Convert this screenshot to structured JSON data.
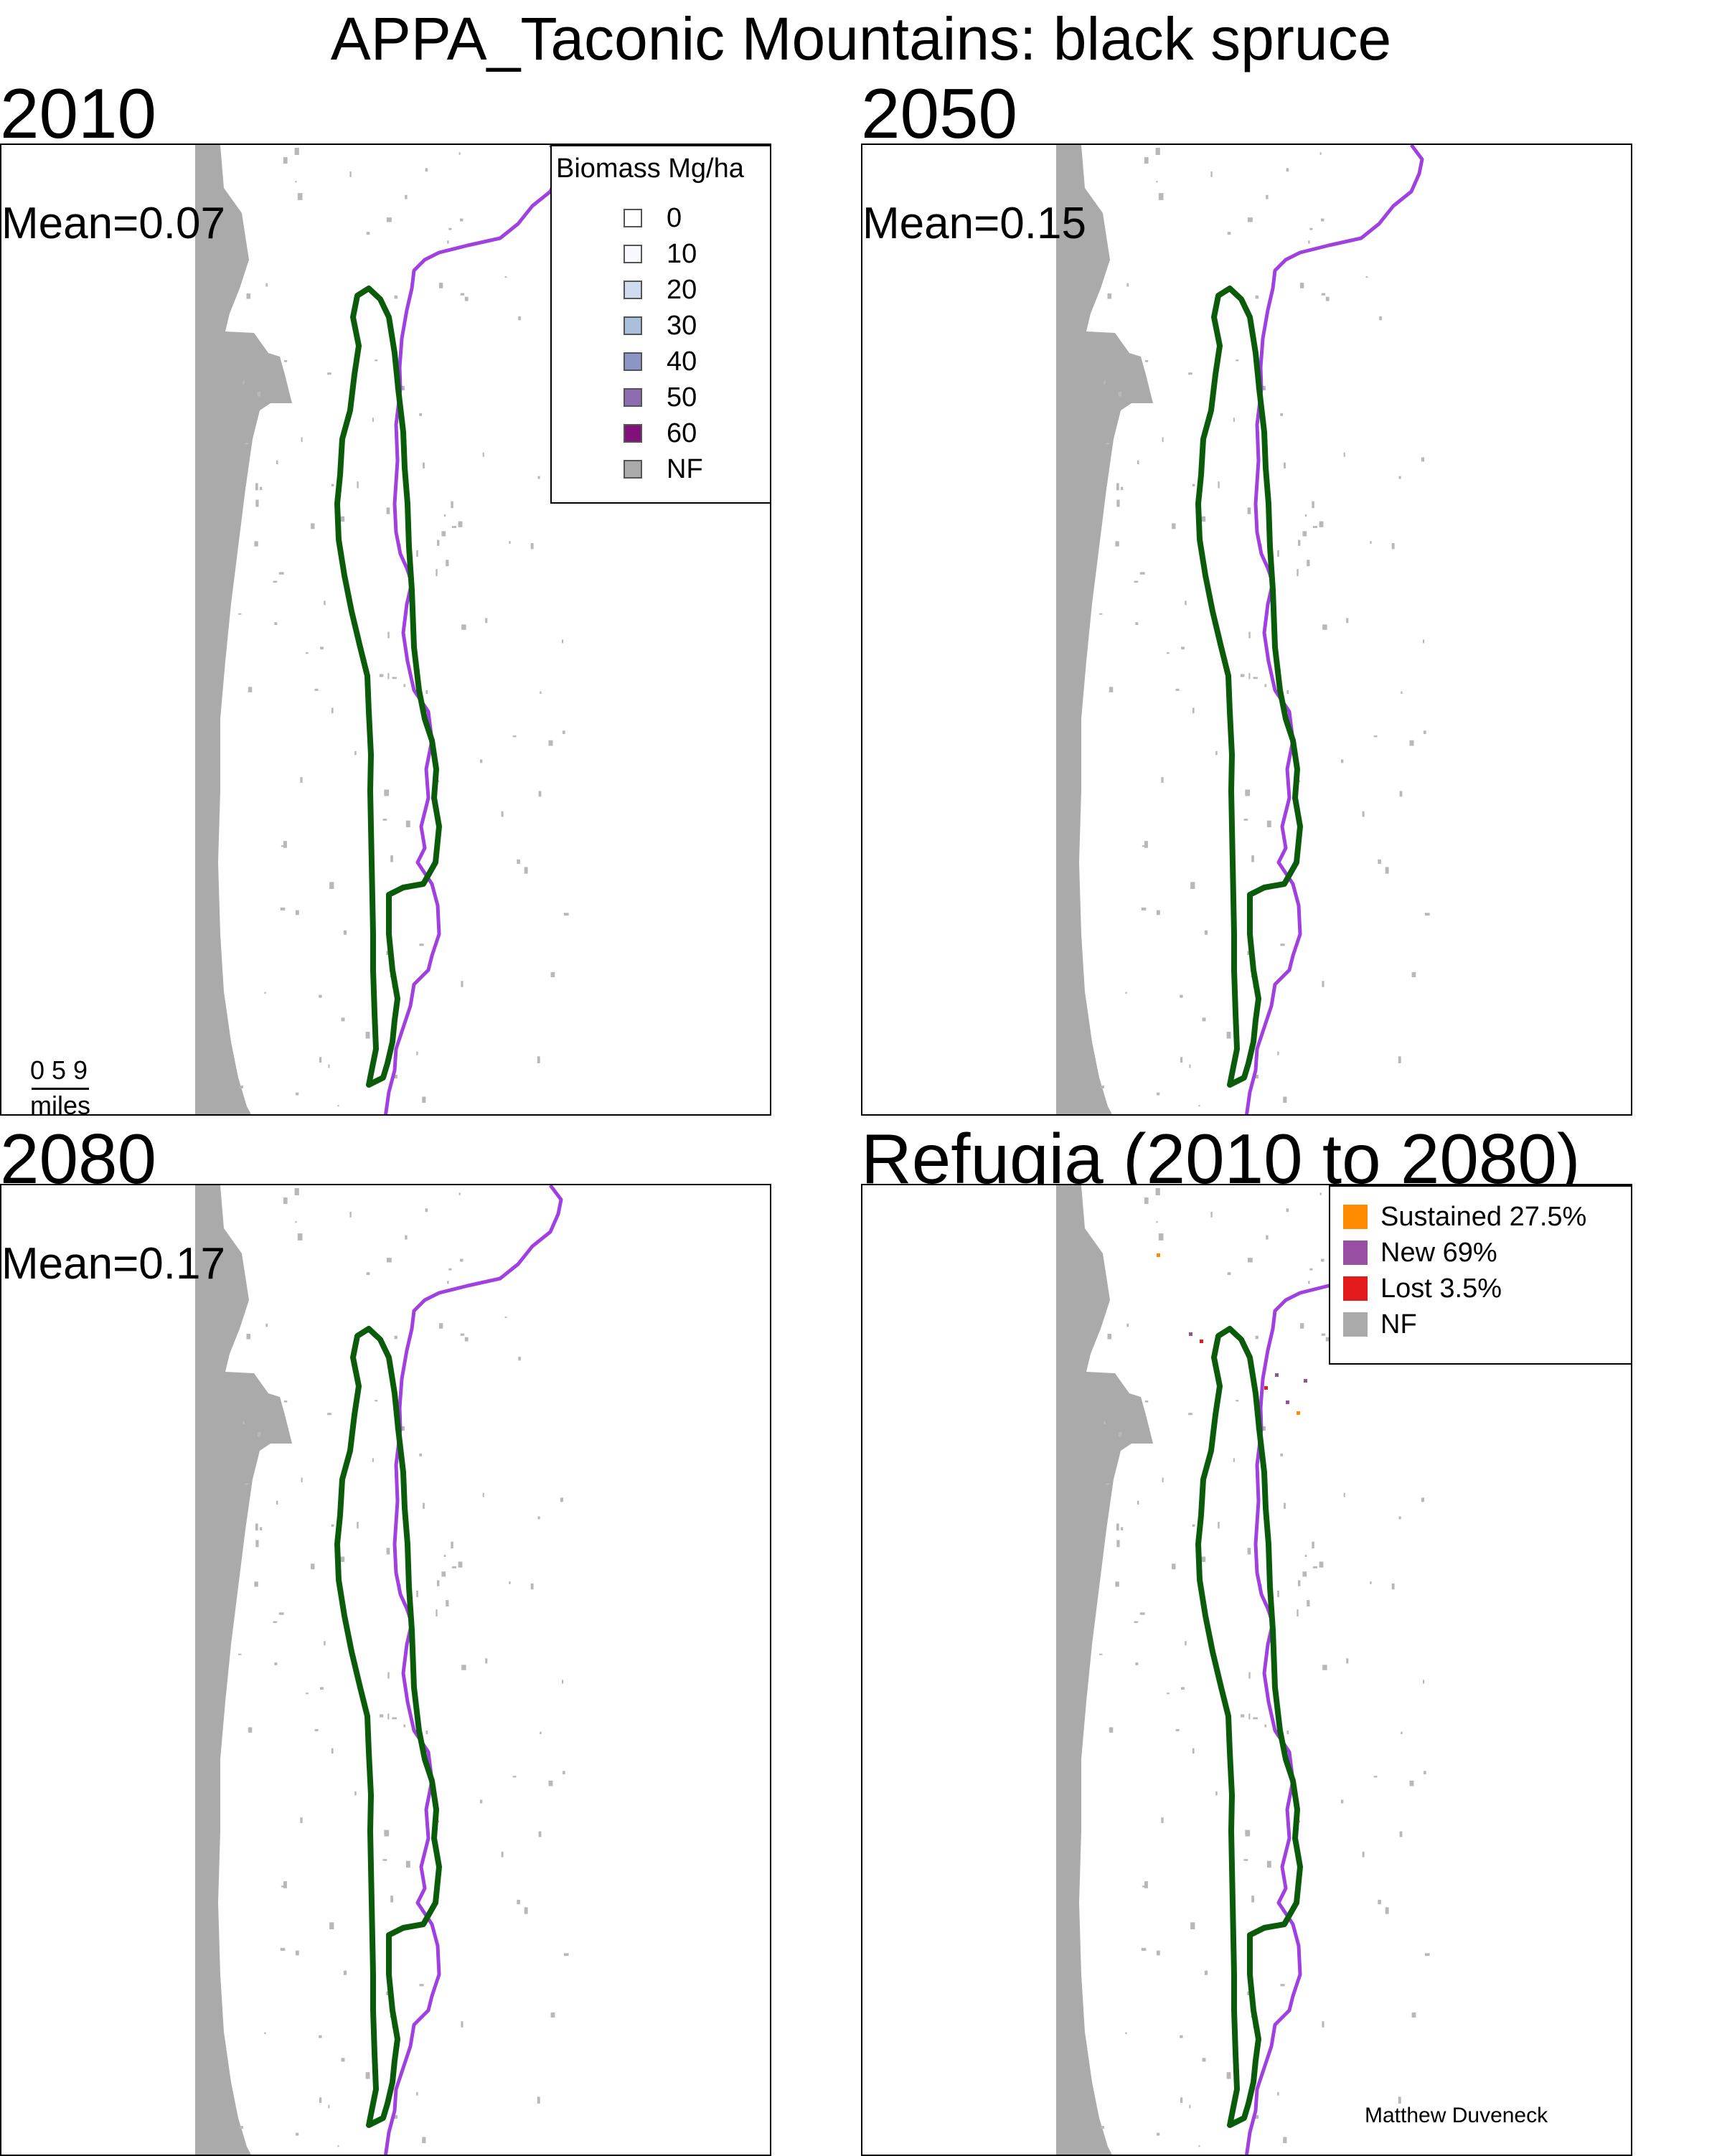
{
  "title": "APPA_Taconic Mountains: black spruce",
  "colors": {
    "nonforest": "#aaaaaa",
    "boundary_green": "#0a5c0a",
    "boundary_purple": "#a040e0",
    "sustained": "#ff8c00",
    "new": "#984ea3",
    "lost": "#e41a1c"
  },
  "panels": [
    {
      "year": "2010",
      "mean": "Mean=0.07"
    },
    {
      "year": "2050",
      "mean": "Mean=0.15"
    },
    {
      "year": "2080",
      "mean": "Mean=0.17"
    },
    {
      "year": "Refugia (2010 to 2080)"
    }
  ],
  "biomass_legend": {
    "title": "Biomass Mg/ha",
    "items": [
      {
        "label": "0",
        "color": "#ffffff"
      },
      {
        "label": "10",
        "color": "#f8f8ff"
      },
      {
        "label": "20",
        "color": "#cfdcef"
      },
      {
        "label": "30",
        "color": "#a9bfdc"
      },
      {
        "label": "40",
        "color": "#8c96c6"
      },
      {
        "label": "50",
        "color": "#8c6bb1"
      },
      {
        "label": "60",
        "color": "#810f7c"
      },
      {
        "label": "NF",
        "color": "#aaaaaa"
      }
    ]
  },
  "refugia_legend": {
    "items": [
      {
        "label": "Sustained 27.5%",
        "color": "#ff8c00"
      },
      {
        "label": "New 69%",
        "color": "#984ea3"
      },
      {
        "label": "Lost 3.5%",
        "color": "#e41a1c"
      },
      {
        "label": "NF",
        "color": "#aaaaaa"
      }
    ]
  },
  "scale": {
    "ticks": "0 5 9",
    "unit": "miles"
  },
  "credit": "Matthew Duveneck"
}
